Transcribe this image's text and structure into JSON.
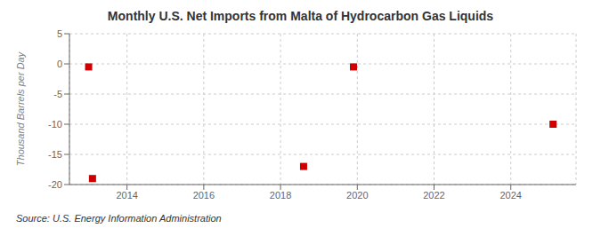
{
  "chart_data": {
    "type": "scatter",
    "title": "Monthly U.S. Net Imports from Malta of Hydrocarbon Gas Liquids",
    "ylabel": "Thousand Barrels per Day",
    "source": "Source: U.S. Energy Information Administration",
    "x": [
      2013.0,
      2013.1,
      2018.6,
      2019.9,
      2025.1
    ],
    "values": [
      -0.5,
      -19.0,
      -17.0,
      -0.5,
      -10.0
    ],
    "color": "#cc0000",
    "marker": "square",
    "xlim": [
      2012.5,
      2025.7
    ],
    "xticks": [
      2014,
      2016,
      2018,
      2020,
      2022,
      2024
    ],
    "ylim": [
      -20,
      5
    ],
    "yticks": [
      -20,
      -15,
      -10,
      -5,
      0,
      5
    ],
    "grid": true
  }
}
